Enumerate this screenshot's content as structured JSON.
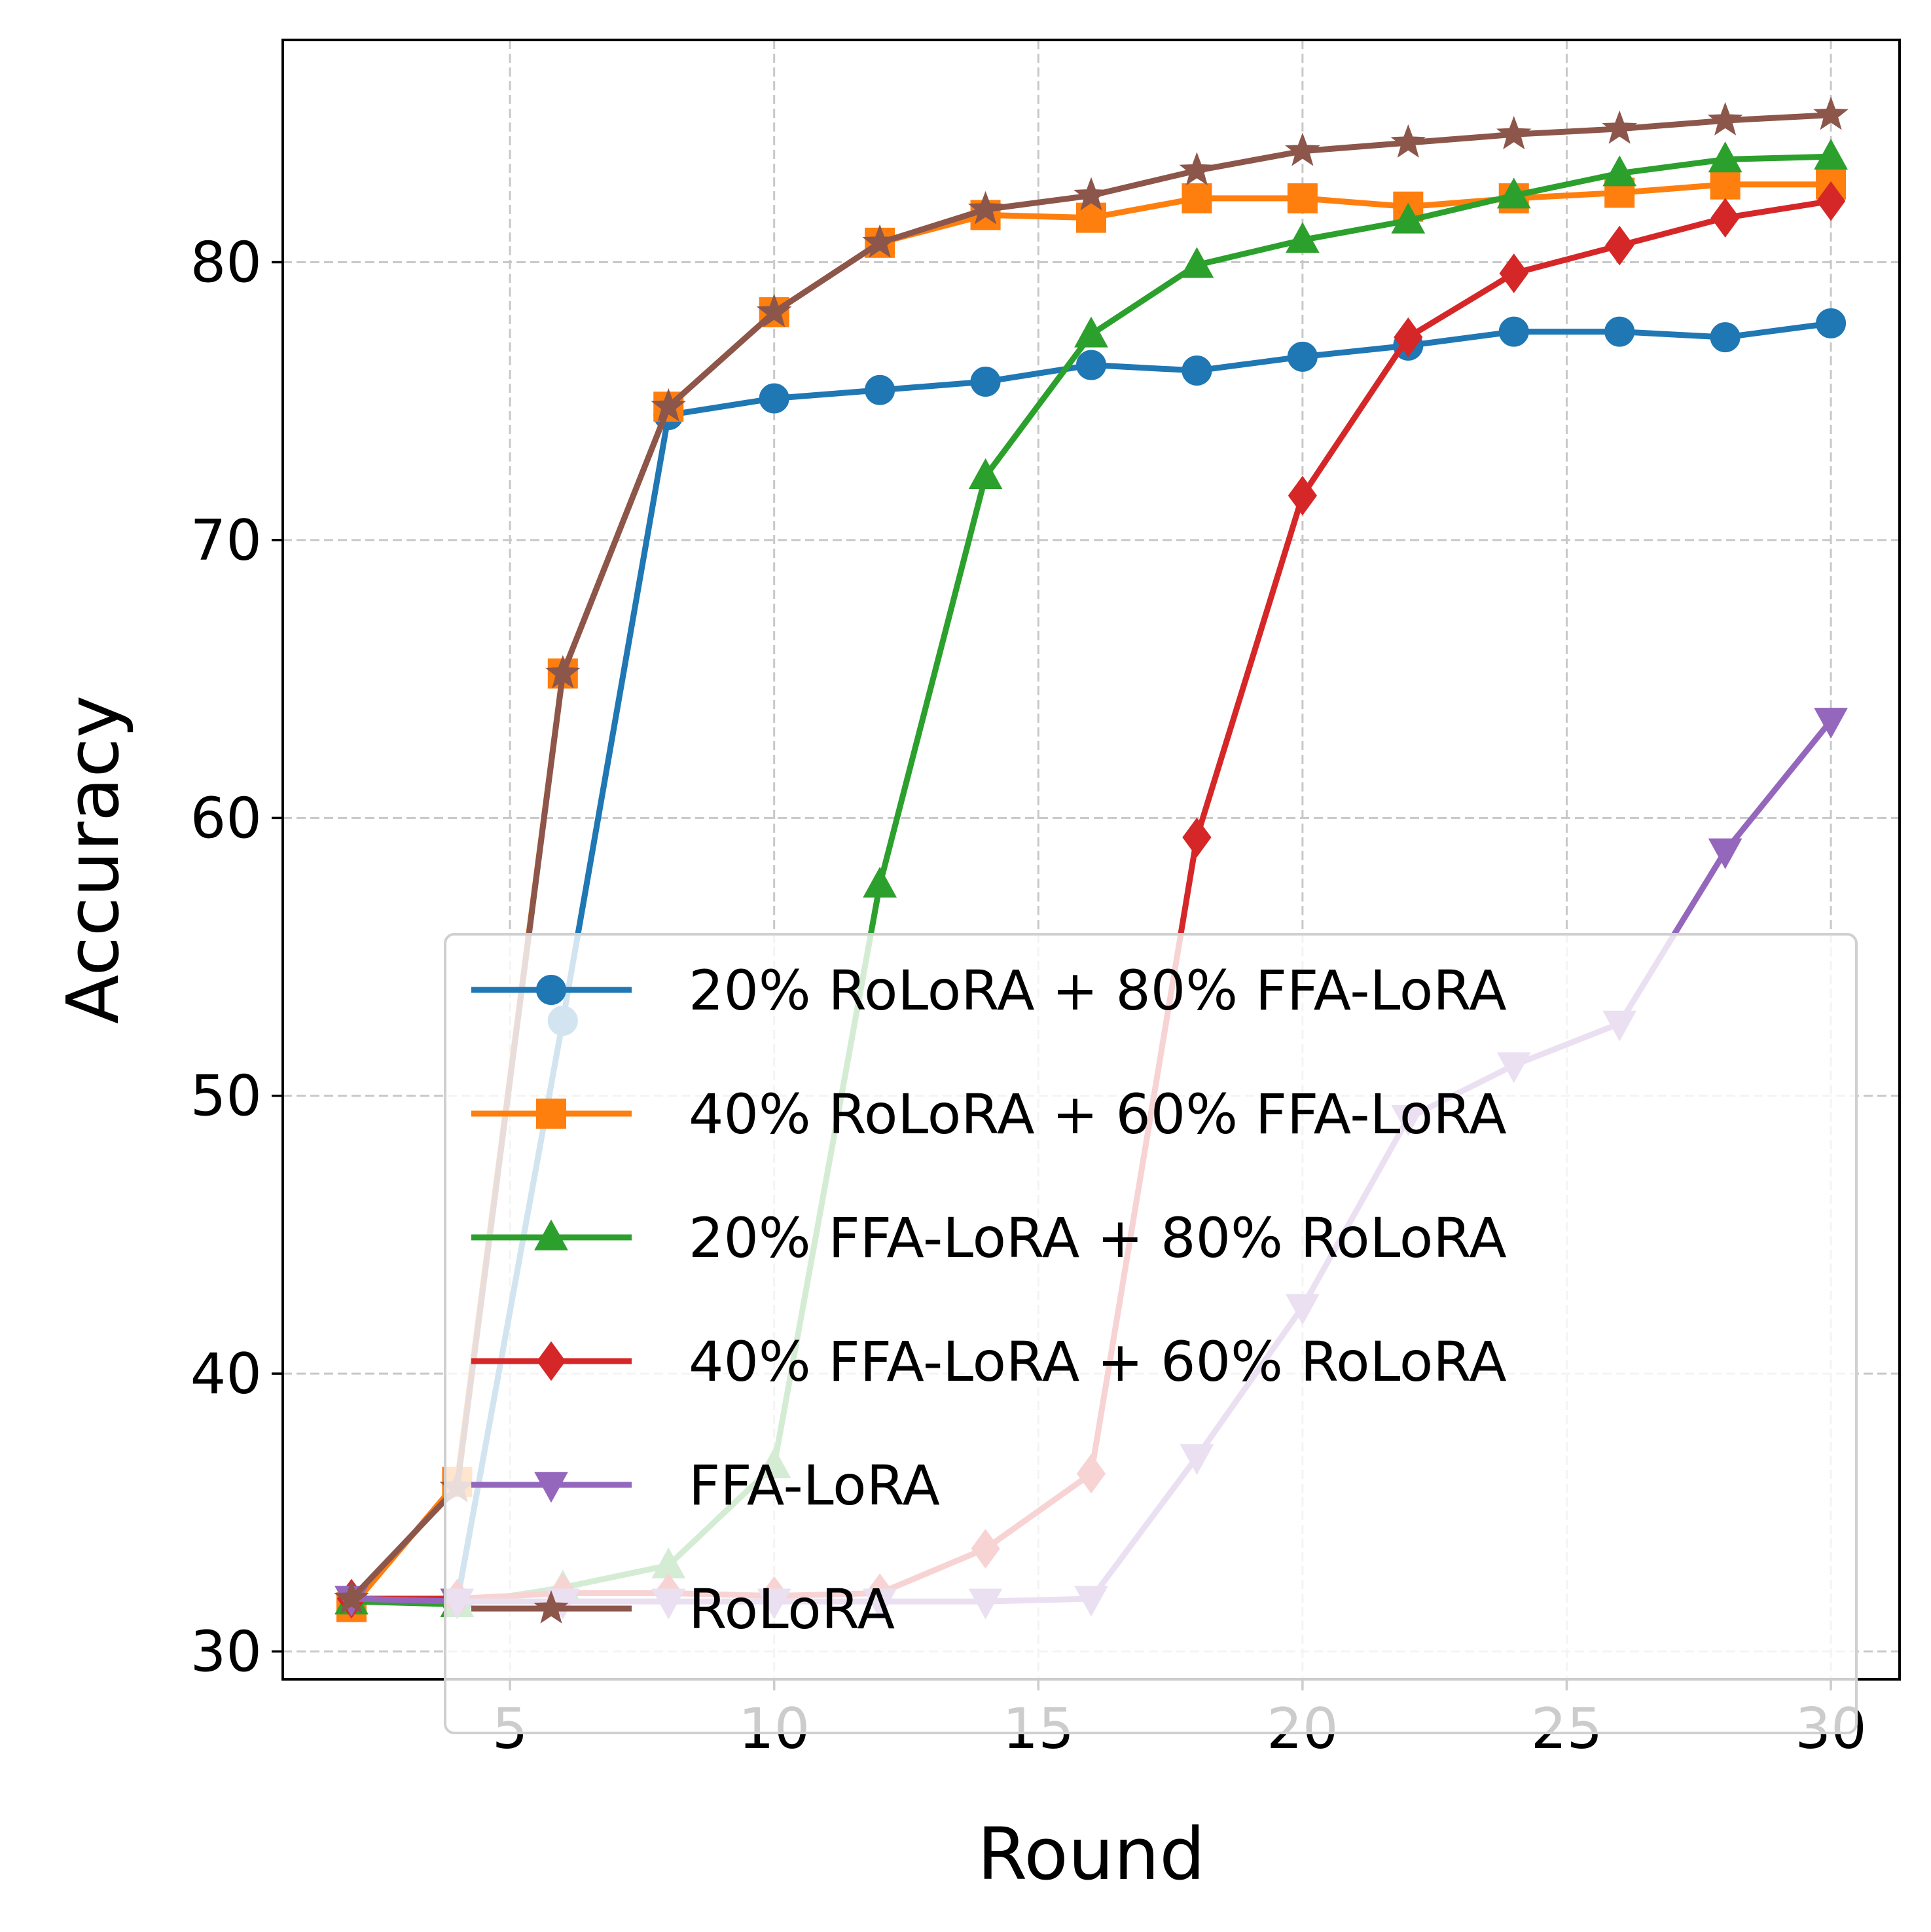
{
  "chart_data": {
    "type": "line",
    "xlabel": "Round",
    "ylabel": "Accuracy",
    "xlim": [
      0.7,
      31.3
    ],
    "ylim": [
      29.0,
      88.0
    ],
    "xticks": [
      5,
      10,
      15,
      20,
      25,
      30
    ],
    "yticks": [
      30,
      40,
      50,
      60,
      70,
      80
    ],
    "xtick_labels": [
      "5",
      "10",
      "15",
      "20",
      "25",
      "30"
    ],
    "ytick_labels": [
      "30",
      "40",
      "50",
      "60",
      "70",
      "80"
    ],
    "grid": true,
    "legend_position": "lower-right",
    "x": [
      2,
      4,
      6,
      8,
      10,
      12,
      14,
      16,
      18,
      20,
      22,
      24,
      26,
      28,
      30
    ],
    "series": [
      {
        "name": "20% RoLoRA + 80% FFA-LoRA",
        "color": "#1f77b4",
        "marker": "circle",
        "values": [
          31.8,
          31.8,
          52.7,
          74.5,
          75.1,
          75.4,
          75.7,
          76.3,
          76.1,
          76.6,
          77.0,
          77.5,
          77.5,
          77.3,
          77.8
        ]
      },
      {
        "name": "40% RoLoRA + 60% FFA-LoRA",
        "color": "#ff7f0e",
        "marker": "square",
        "values": [
          31.6,
          36.1,
          65.2,
          74.8,
          78.2,
          80.7,
          81.7,
          81.6,
          82.3,
          82.3,
          82.0,
          82.3,
          82.5,
          82.8,
          82.8
        ]
      },
      {
        "name": "20% FFA-LoRA + 80% RoLoRA",
        "color": "#2ca02c",
        "marker": "triangle-up",
        "values": [
          31.8,
          31.7,
          32.3,
          33.1,
          36.7,
          57.6,
          72.3,
          77.4,
          79.9,
          80.8,
          81.5,
          82.4,
          83.2,
          83.7,
          83.8
        ]
      },
      {
        "name": "40% FFA-LoRA + 60% RoLoRA",
        "color": "#d62728",
        "marker": "diamond",
        "values": [
          31.9,
          31.9,
          32.1,
          32.1,
          32.0,
          32.1,
          33.7,
          36.4,
          59.3,
          71.6,
          77.3,
          79.6,
          80.6,
          81.6,
          82.2
        ]
      },
      {
        "name": "FFA-LoRA",
        "color": "#9467bd",
        "marker": "triangle-down",
        "values": [
          31.9,
          31.8,
          31.8,
          31.8,
          31.8,
          31.8,
          31.8,
          31.9,
          37.0,
          42.4,
          49.2,
          51.1,
          52.6,
          58.8,
          63.5
        ]
      },
      {
        "name": "RoLoRA",
        "color": "#8c564b",
        "marker": "star",
        "values": [
          31.9,
          35.9,
          65.2,
          74.8,
          78.2,
          80.7,
          81.9,
          82.4,
          83.3,
          84.0,
          84.3,
          84.6,
          84.8,
          85.1,
          85.3
        ]
      }
    ]
  }
}
